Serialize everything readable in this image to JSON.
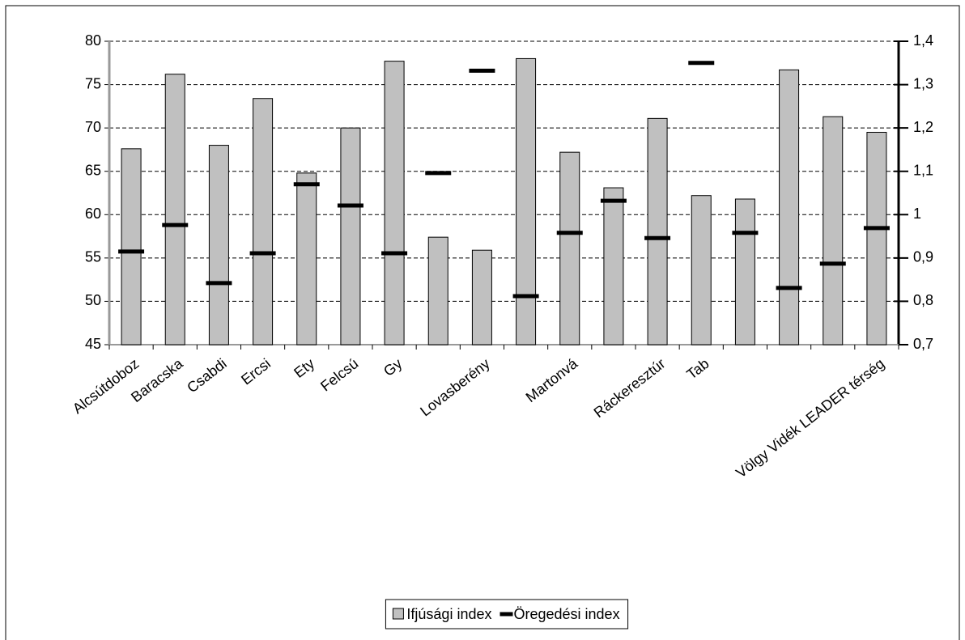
{
  "chart_data": {
    "type": "bar",
    "categories": [
      "Alcsútdoboz",
      "Baracska",
      "Csabdi",
      "Ercsi",
      "Ety",
      "Felcsú",
      "Gy",
      null,
      "Lovasberény",
      null,
      "Martonvá",
      null,
      "Ráckeresztúr",
      "Tab",
      null,
      null,
      null,
      "Völgy Vidék LEADER térség"
    ],
    "series": [
      {
        "name": "Ifjúsági index",
        "color": "#c0c0c0",
        "values": [
          67.6,
          76.2,
          68.0,
          73.4,
          64.8,
          70.0,
          77.7,
          57.4,
          55.9,
          78.0,
          67.2,
          63.1,
          71.1,
          62.2,
          61.8,
          76.7,
          71.3,
          69.5
        ]
      },
      {
        "name": "Öregedési index",
        "color": "#000000",
        "axis": "y2",
        "values": [
          0.915,
          0.976,
          0.842,
          0.911,
          1.07,
          1.021,
          0.911,
          1.096,
          1.332,
          0.812,
          0.958,
          1.032,
          0.946,
          1.35,
          0.958,
          0.831,
          0.887,
          0.969
        ]
      }
    ],
    "ylim": [
      45,
      80
    ],
    "yticks": [
      45,
      50,
      55,
      60,
      65,
      70,
      75,
      80
    ],
    "y2lim": [
      0.7,
      1.4
    ],
    "y2ticks": [
      {
        "value": 0.7,
        "label": "0,7"
      },
      {
        "value": 0.8,
        "label": "0,8"
      },
      {
        "value": 0.9,
        "label": "0,9"
      },
      1,
      {
        "value": 1.1,
        "label": "1,1"
      },
      {
        "value": 1.2,
        "label": "1,2"
      },
      {
        "value": 1.3,
        "label": "1,3"
      },
      {
        "value": 1.4,
        "label": "1,4"
      }
    ],
    "grid": true,
    "legend": "bottom"
  }
}
